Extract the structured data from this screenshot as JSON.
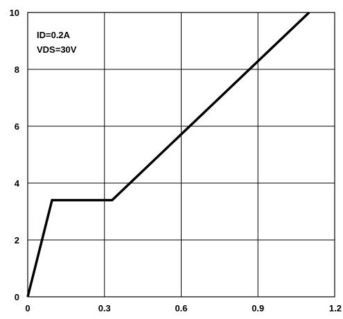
{
  "chart_data": {
    "type": "line",
    "title": "",
    "xlabel": "",
    "ylabel": "",
    "xlim": [
      0,
      1.2
    ],
    "ylim": [
      0,
      10
    ],
    "x_ticks": [
      0,
      0.3,
      0.6,
      0.9,
      1.2
    ],
    "x_tick_labels": [
      "0",
      "0.3",
      "0.6",
      "0.9",
      "1.2"
    ],
    "y_ticks": [
      0,
      2,
      4,
      6,
      8,
      10
    ],
    "y_tick_labels": [
      "0",
      "2",
      "4",
      "6",
      "8",
      "10"
    ],
    "grid": true,
    "annotations": [
      "ID=0.2A",
      "VDS=30V"
    ],
    "series": [
      {
        "color": "#000000",
        "x": [
          0,
          0.095,
          0.33,
          1.1
        ],
        "y": [
          0,
          3.4,
          3.4,
          10
        ]
      }
    ]
  }
}
